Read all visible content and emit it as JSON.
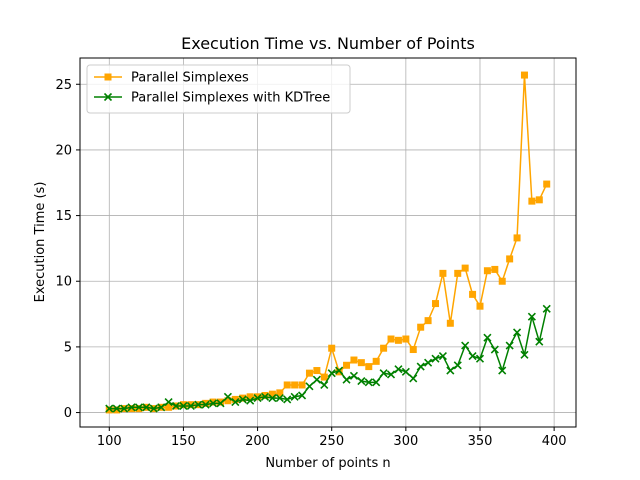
{
  "chart_data": {
    "type": "line",
    "title": "Execution Time vs. Number of Points",
    "xlabel": "Number of points n",
    "ylabel": "Execution Time (s)",
    "xlim": [
      80.25,
      414.75
    ],
    "ylim": [
      -1.1,
      27.0
    ],
    "xticks": [
      100,
      150,
      200,
      250,
      300,
      350,
      400
    ],
    "yticks": [
      0,
      5,
      10,
      15,
      20,
      25
    ],
    "grid": true,
    "legend_position": "top-left",
    "x": [
      100,
      105,
      110,
      115,
      120,
      125,
      130,
      135,
      140,
      145,
      150,
      155,
      160,
      165,
      170,
      175,
      180,
      185,
      190,
      195,
      200,
      205,
      210,
      215,
      220,
      225,
      230,
      235,
      240,
      245,
      250,
      255,
      260,
      265,
      270,
      275,
      280,
      285,
      290,
      295,
      300,
      305,
      310,
      315,
      320,
      325,
      330,
      335,
      340,
      345,
      350,
      355,
      360,
      365,
      370,
      375,
      380,
      385,
      390,
      395
    ],
    "series": [
      {
        "name": "Parallel Simplexes",
        "color": "#ffa500",
        "marker": "square",
        "values": [
          0.2,
          0.2,
          0.3,
          0.3,
          0.3,
          0.4,
          0.3,
          0.4,
          0.4,
          0.5,
          0.6,
          0.6,
          0.6,
          0.7,
          0.8,
          0.8,
          0.9,
          1.0,
          1.1,
          1.2,
          1.2,
          1.3,
          1.4,
          1.5,
          2.1,
          2.1,
          2.1,
          3.0,
          3.2,
          2.7,
          4.9,
          3.1,
          3.6,
          4.0,
          3.8,
          3.5,
          3.9,
          4.9,
          5.6,
          5.5,
          5.6,
          4.8,
          6.5,
          7.0,
          8.3,
          10.6,
          6.8,
          10.6,
          11.0,
          9.0,
          8.1,
          10.8,
          10.9,
          10.0,
          11.7,
          13.3,
          25.7,
          16.1,
          16.2,
          17.4
        ]
      },
      {
        "name": "Parallel Simplexes with KDTree",
        "color": "#008000",
        "marker": "x",
        "values": [
          0.3,
          0.3,
          0.3,
          0.4,
          0.4,
          0.4,
          0.3,
          0.4,
          0.8,
          0.5,
          0.5,
          0.5,
          0.6,
          0.6,
          0.7,
          0.7,
          1.2,
          0.8,
          1.0,
          0.9,
          1.1,
          1.2,
          1.1,
          1.1,
          1.0,
          1.2,
          1.3,
          2.0,
          2.5,
          2.1,
          3.0,
          3.2,
          2.5,
          2.8,
          2.4,
          2.3,
          2.3,
          3.0,
          2.9,
          3.3,
          3.1,
          2.6,
          3.5,
          3.8,
          4.1,
          4.3,
          3.2,
          3.6,
          5.1,
          4.3,
          4.1,
          5.7,
          4.8,
          3.2,
          5.1,
          6.1,
          4.4,
          7.3,
          5.4,
          7.9
        ]
      }
    ]
  }
}
